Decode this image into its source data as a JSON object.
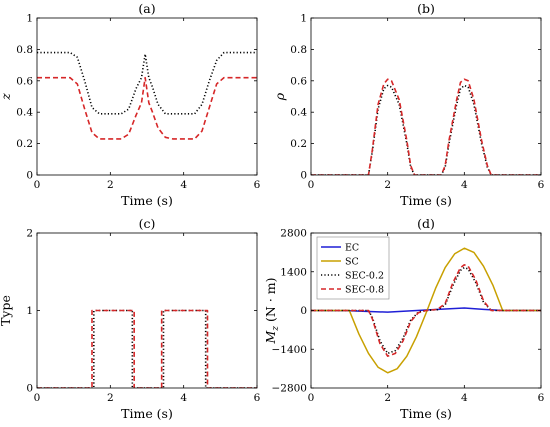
{
  "chart_data": [
    {
      "type": "line",
      "title": "(a)",
      "xlabel": "Time (s)",
      "ylabel": "z",
      "xlim": [
        0,
        6
      ],
      "ylim": [
        0,
        1
      ],
      "xticks": [
        0,
        2,
        4,
        6
      ],
      "yticks": [
        0,
        0.2,
        0.4,
        0.6,
        0.8,
        1
      ],
      "ytick_labels": [
        "0",
        "0.2",
        "0.4",
        "0.6",
        "0.8",
        "1"
      ],
      "grid": false,
      "series": [
        {
          "color": "#000000",
          "dash": "dot",
          "x": [
            0,
            0.9,
            1.1,
            1.3,
            1.5,
            1.7,
            2.0,
            2.3,
            2.5,
            2.7,
            2.85,
            2.95,
            3.05,
            3.15,
            3.3,
            3.5,
            3.7,
            4.0,
            4.3,
            4.5,
            4.7,
            4.9,
            5.1,
            6
          ],
          "y": [
            0.78,
            0.78,
            0.75,
            0.6,
            0.43,
            0.39,
            0.39,
            0.39,
            0.42,
            0.55,
            0.62,
            0.77,
            0.62,
            0.56,
            0.45,
            0.39,
            0.39,
            0.39,
            0.39,
            0.45,
            0.6,
            0.73,
            0.78,
            0.78
          ]
        },
        {
          "color": "#d62728",
          "dash": "dash",
          "x": [
            0,
            0.9,
            1.1,
            1.3,
            1.5,
            1.7,
            2.0,
            2.3,
            2.5,
            2.7,
            2.85,
            2.95,
            3.05,
            3.15,
            3.3,
            3.5,
            3.7,
            4.0,
            4.3,
            4.5,
            4.7,
            4.9,
            5.1,
            6
          ],
          "y": [
            0.62,
            0.62,
            0.58,
            0.42,
            0.27,
            0.23,
            0.23,
            0.23,
            0.26,
            0.38,
            0.46,
            0.62,
            0.46,
            0.4,
            0.3,
            0.24,
            0.23,
            0.23,
            0.23,
            0.28,
            0.43,
            0.58,
            0.62,
            0.62
          ]
        }
      ]
    },
    {
      "type": "line",
      "title": "(b)",
      "xlabel": "Time (s)",
      "ylabel": "ρ",
      "xlim": [
        0,
        6
      ],
      "ylim": [
        0,
        1
      ],
      "xticks": [
        0,
        2,
        4,
        6
      ],
      "yticks": [
        0,
        0.2,
        0.4,
        0.6,
        0.8,
        1
      ],
      "ytick_labels": [
        "0",
        "0.2",
        "0.4",
        "0.6",
        "0.8",
        "1"
      ],
      "grid": false,
      "series": [
        {
          "color": "#000000",
          "dash": "dot",
          "x": [
            0,
            1.5,
            1.6,
            1.75,
            1.9,
            2.0,
            2.1,
            2.3,
            2.5,
            2.6,
            2.7,
            3.4,
            3.5,
            3.6,
            3.8,
            3.9,
            4.0,
            4.1,
            4.25,
            4.45,
            4.6,
            4.7,
            6
          ],
          "y": [
            0,
            0,
            0.15,
            0.42,
            0.55,
            0.57,
            0.56,
            0.45,
            0.2,
            0.05,
            0,
            0,
            0.05,
            0.2,
            0.45,
            0.55,
            0.57,
            0.56,
            0.45,
            0.2,
            0.05,
            0,
            0
          ]
        },
        {
          "color": "#d62728",
          "dash": "dash",
          "x": [
            0,
            1.5,
            1.6,
            1.75,
            1.9,
            2.0,
            2.1,
            2.3,
            2.5,
            2.6,
            2.7,
            3.4,
            3.5,
            3.6,
            3.8,
            3.9,
            4.0,
            4.1,
            4.25,
            4.45,
            4.6,
            4.7,
            6
          ],
          "y": [
            0,
            0,
            0.16,
            0.45,
            0.58,
            0.61,
            0.6,
            0.48,
            0.22,
            0.06,
            0,
            0,
            0.06,
            0.22,
            0.48,
            0.59,
            0.61,
            0.6,
            0.48,
            0.22,
            0.06,
            0,
            0
          ]
        }
      ]
    },
    {
      "type": "line",
      "title": "(c)",
      "xlabel": "Time (s)",
      "ylabel": "Type",
      "xlim": [
        0,
        6
      ],
      "ylim": [
        0,
        2
      ],
      "xticks": [
        0,
        2,
        4,
        6
      ],
      "yticks": [
        0,
        1,
        2
      ],
      "ytick_labels": [
        "0",
        "1",
        "2"
      ],
      "grid": false,
      "series": [
        {
          "color": "#000000",
          "dash": "dot",
          "x": [
            0,
            1.55,
            1.55,
            2.6,
            2.6,
            3.45,
            3.45,
            4.6,
            4.6,
            6
          ],
          "y": [
            0,
            0,
            1,
            1,
            0,
            0,
            1,
            1,
            0,
            0
          ]
        },
        {
          "color": "#d62728",
          "dash": "dash",
          "x": [
            0,
            1.5,
            1.5,
            2.65,
            2.65,
            3.4,
            3.4,
            4.65,
            4.65,
            6
          ],
          "y": [
            0,
            0,
            1,
            1,
            0,
            0,
            1,
            1,
            0,
            0
          ]
        }
      ]
    },
    {
      "type": "line",
      "title": "(d)",
      "xlabel": "Time (s)",
      "ylabel": "M_z (N · m)",
      "ylabel_main": "M",
      "ylabel_sub": "z",
      "ylabel_unit": "(N · m)",
      "xlim": [
        0,
        6
      ],
      "ylim": [
        -2800,
        2800
      ],
      "xticks": [
        0,
        2,
        4,
        6
      ],
      "yticks": [
        -2800,
        -1400,
        0,
        1400,
        2800
      ],
      "ytick_labels": [
        "−2800",
        "−1400",
        "0",
        "1400",
        "2800"
      ],
      "grid": false,
      "legend": {
        "position": "top-left",
        "entries": [
          "EC",
          "SC",
          "SEC-0.2",
          "SEC-0.8"
        ]
      },
      "series": [
        {
          "name": "EC",
          "color": "#1f1fd6",
          "dash": "solid",
          "x": [
            0,
            1.0,
            2.0,
            3.0,
            4.0,
            4.5,
            5.0,
            6
          ],
          "y": [
            0,
            -10,
            -60,
            20,
            90,
            40,
            0,
            0
          ]
        },
        {
          "name": "SC",
          "color": "#c8a000",
          "dash": "solid",
          "x": [
            0,
            1.0,
            1.25,
            1.5,
            1.75,
            2.0,
            2.25,
            2.5,
            2.75,
            3.0,
            3.25,
            3.5,
            3.75,
            4.0,
            4.25,
            4.5,
            4.75,
            5.0,
            6
          ],
          "y": [
            0,
            0,
            -850,
            -1550,
            -2050,
            -2250,
            -2100,
            -1650,
            -950,
            -100,
            800,
            1550,
            2050,
            2250,
            2100,
            1600,
            900,
            0,
            0
          ]
        },
        {
          "name": "SEC-0.2",
          "color": "#000000",
          "dash": "dot",
          "x": [
            0,
            1.5,
            1.6,
            1.8,
            2.0,
            2.2,
            2.4,
            2.6,
            2.8,
            3.0,
            3.3,
            3.5,
            3.7,
            3.9,
            4.0,
            4.1,
            4.3,
            4.5,
            4.7,
            6
          ],
          "y": [
            0,
            0,
            -250,
            -1100,
            -1550,
            -1450,
            -1000,
            -350,
            -60,
            0,
            30,
            200,
            900,
            1450,
            1550,
            1500,
            1000,
            300,
            0,
            0
          ]
        },
        {
          "name": "SEC-0.8",
          "color": "#d62728",
          "dash": "dash",
          "x": [
            0,
            1.5,
            1.6,
            1.8,
            2.0,
            2.2,
            2.4,
            2.6,
            2.8,
            3.0,
            3.3,
            3.5,
            3.7,
            3.9,
            4.0,
            4.1,
            4.3,
            4.5,
            4.7,
            6
          ],
          "y": [
            0,
            0,
            -300,
            -1200,
            -1650,
            -1550,
            -1100,
            -400,
            -80,
            0,
            40,
            250,
            1000,
            1550,
            1650,
            1600,
            1100,
            350,
            0,
            0
          ]
        }
      ]
    }
  ]
}
